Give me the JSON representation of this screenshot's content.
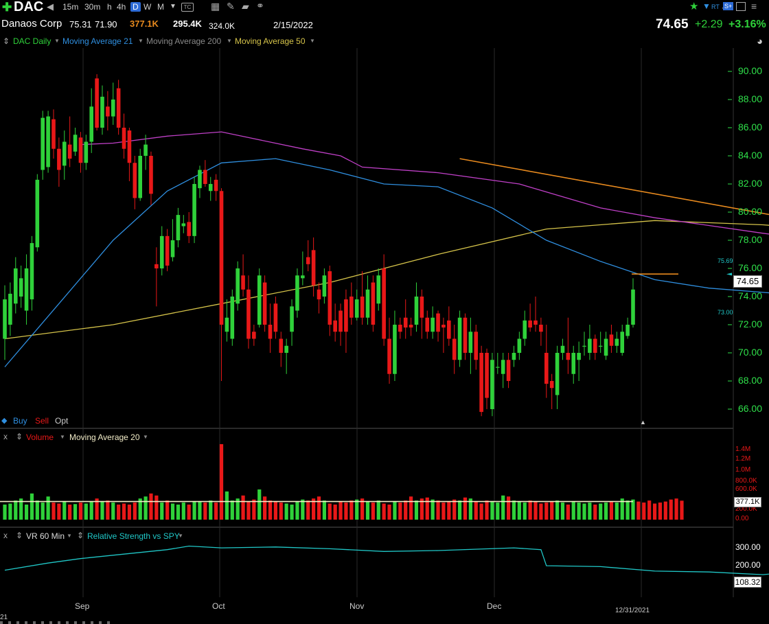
{
  "toolbar": {
    "symbol": "DAC",
    "intervals": [
      "15m",
      "30m",
      "h",
      "4h",
      "D",
      "W",
      "M"
    ],
    "active_interval": "D",
    "rt_label": "RT",
    "s_label": "S+"
  },
  "quote": {
    "name": "Danaos Corp",
    "high": "75.31",
    "low": "71.90",
    "volume": "377.1K",
    "avg_volume": "295.4K",
    "volume2": "324.0K",
    "date": "2/15/2022",
    "last": "74.65",
    "change": "+2.29",
    "change_pct": "+3.16%"
  },
  "legend": {
    "main": "DAC Daily",
    "ma21": "Moving Average 21",
    "ma200": "Moving Average 200",
    "ma50": "Moving Average 50"
  },
  "colors": {
    "up": "#2fd13a",
    "down": "#e81818",
    "ma21": "#2f8fe0",
    "ma50": "#d6c44a",
    "ma200": "#c040c8",
    "trend": "#e88a1e",
    "rs": "#20c8c8",
    "axis": "#2fe04a"
  },
  "price_axis": {
    "ticks": [
      "90.00",
      "88.00",
      "86.00",
      "84.00",
      "82.00",
      "80.00",
      "78.00",
      "76.00",
      "74.00",
      "72.00",
      "70.00",
      "68.00",
      "66.00"
    ],
    "last_box": "74.65",
    "small_top": "75.69",
    "small_bottom": "73.00"
  },
  "trade_bar": {
    "buy": "Buy",
    "sell": "Sell",
    "opt": "Opt"
  },
  "volume_panel": {
    "close": "x",
    "title": "Volume",
    "ma": "Moving Average 20",
    "ticks": [
      "1.4M",
      "1.2M",
      "1.0M",
      "800.0K",
      "600.0K",
      "200.0K",
      "0.00"
    ],
    "box": "377.1K"
  },
  "rs_panel": {
    "close": "x",
    "vr": "VR 60 Min",
    "title": "Relative Strength vs SPY",
    "ticks": [
      "300.00",
      "200.00"
    ],
    "box": "108.32"
  },
  "time_axis": {
    "labels": [
      "Sep",
      "Oct",
      "Nov",
      "Dec"
    ],
    "end_date": "12/31/2021",
    "left_stub": "21"
  },
  "chart_data": {
    "type": "candlestick",
    "symbol": "DAC",
    "ylim": [
      65,
      91
    ],
    "y_ticks": [
      66,
      68,
      70,
      72,
      74,
      76,
      78,
      80,
      82,
      84,
      86,
      88,
      90
    ],
    "x_labels": [
      "Sep",
      "Oct",
      "Nov",
      "Dec"
    ],
    "last_price": 74.65,
    "candles": [
      {
        "o": 71.0,
        "c": 73.8,
        "h": 74.8,
        "l": 69.5
      },
      {
        "o": 72.0,
        "c": 74.2,
        "h": 75.0,
        "l": 71.2
      },
      {
        "o": 73.5,
        "c": 76.0,
        "h": 76.8,
        "l": 72.8
      },
      {
        "o": 74.0,
        "c": 75.3,
        "h": 76.2,
        "l": 73.2
      },
      {
        "o": 73.0,
        "c": 76.0,
        "h": 77.0,
        "l": 72.0
      },
      {
        "o": 73.8,
        "c": 77.8,
        "h": 78.3,
        "l": 73.0
      },
      {
        "o": 77.5,
        "c": 82.3,
        "h": 82.7,
        "l": 77.2
      },
      {
        "o": 83.0,
        "c": 86.7,
        "h": 87.2,
        "l": 82.3
      },
      {
        "o": 83.2,
        "c": 86.8,
        "h": 87.2,
        "l": 82.8
      },
      {
        "o": 86.6,
        "c": 84.5,
        "h": 87.3,
        "l": 83.8
      },
      {
        "o": 84.5,
        "c": 83.0,
        "h": 85.3,
        "l": 81.8
      },
      {
        "o": 83.3,
        "c": 85.0,
        "h": 85.8,
        "l": 82.3
      },
      {
        "o": 84.8,
        "c": 83.8,
        "h": 86.8,
        "l": 83.2
      },
      {
        "o": 84.3,
        "c": 85.5,
        "h": 86.0,
        "l": 84.0
      },
      {
        "o": 85.3,
        "c": 83.5,
        "h": 85.7,
        "l": 82.8
      },
      {
        "o": 83.5,
        "c": 85.0,
        "h": 85.5,
        "l": 83.0
      },
      {
        "o": 85.0,
        "c": 87.5,
        "h": 88.8,
        "l": 84.2
      },
      {
        "o": 89.5,
        "c": 86.0,
        "h": 89.8,
        "l": 85.8
      },
      {
        "o": 86.0,
        "c": 88.2,
        "h": 89.0,
        "l": 85.5
      },
      {
        "o": 87.5,
        "c": 86.8,
        "h": 88.6,
        "l": 85.8
      },
      {
        "o": 86.8,
        "c": 88.0,
        "h": 89.2,
        "l": 86.2
      },
      {
        "o": 88.8,
        "c": 86.0,
        "h": 89.4,
        "l": 85.5
      },
      {
        "o": 86.0,
        "c": 84.5,
        "h": 87.0,
        "l": 83.8
      },
      {
        "o": 85.8,
        "c": 83.5,
        "h": 86.0,
        "l": 82.2
      },
      {
        "o": 83.5,
        "c": 81.0,
        "h": 84.0,
        "l": 80.2
      },
      {
        "o": 81.0,
        "c": 84.0,
        "h": 84.5,
        "l": 80.8
      },
      {
        "o": 84.0,
        "c": 84.8,
        "h": 85.5,
        "l": 83.0
      },
      {
        "o": 84.0,
        "c": 81.3,
        "h": 84.3,
        "l": 80.5
      },
      {
        "o": 76.3,
        "c": 76.0,
        "h": 77.5,
        "l": 73.3
      },
      {
        "o": 76.0,
        "c": 78.3,
        "h": 79.0,
        "l": 75.5
      },
      {
        "o": 78.3,
        "c": 76.2,
        "h": 78.8,
        "l": 75.8
      },
      {
        "o": 76.8,
        "c": 78.0,
        "h": 79.5,
        "l": 76.5
      },
      {
        "o": 78.0,
        "c": 79.8,
        "h": 80.3,
        "l": 77.5
      },
      {
        "o": 79.0,
        "c": 79.2,
        "h": 79.8,
        "l": 78.5
      },
      {
        "o": 79.3,
        "c": 78.3,
        "h": 80.0,
        "l": 77.8
      },
      {
        "o": 78.3,
        "c": 82.0,
        "h": 82.5,
        "l": 77.8
      },
      {
        "o": 81.7,
        "c": 83.0,
        "h": 83.3,
        "l": 81.0
      },
      {
        "o": 83.0,
        "c": 82.0,
        "h": 83.7,
        "l": 81.8
      },
      {
        "o": 81.5,
        "c": 82.0,
        "h": 82.5,
        "l": 80.8
      },
      {
        "o": 82.3,
        "c": 81.5,
        "h": 82.7,
        "l": 80.8
      },
      {
        "o": 81.5,
        "c": 72.0,
        "h": 81.7,
        "l": 68.0
      },
      {
        "o": 71.5,
        "c": 72.5,
        "h": 73.8,
        "l": 70.8
      },
      {
        "o": 71.0,
        "c": 74.0,
        "h": 74.5,
        "l": 70.5
      },
      {
        "o": 73.5,
        "c": 76.0,
        "h": 76.5,
        "l": 73.0
      },
      {
        "o": 75.5,
        "c": 74.5,
        "h": 77.0,
        "l": 74.0
      },
      {
        "o": 74.5,
        "c": 71.0,
        "h": 75.5,
        "l": 70.3
      },
      {
        "o": 71.5,
        "c": 71.0,
        "h": 72.0,
        "l": 70.5
      },
      {
        "o": 72.0,
        "c": 75.5,
        "h": 76.0,
        "l": 71.8
      },
      {
        "o": 75.0,
        "c": 72.0,
        "h": 75.5,
        "l": 71.5
      },
      {
        "o": 72.0,
        "c": 71.0,
        "h": 73.5,
        "l": 70.0
      },
      {
        "o": 73.5,
        "c": 71.5,
        "h": 74.0,
        "l": 71.0
      },
      {
        "o": 71.0,
        "c": 70.0,
        "h": 71.5,
        "l": 69.0
      },
      {
        "o": 70.0,
        "c": 70.5,
        "h": 71.0,
        "l": 68.5
      },
      {
        "o": 71.5,
        "c": 73.3,
        "h": 73.8,
        "l": 70.5
      },
      {
        "o": 73.0,
        "c": 75.5,
        "h": 76.0,
        "l": 72.5
      },
      {
        "o": 75.3,
        "c": 75.5,
        "h": 77.2,
        "l": 74.8
      },
      {
        "o": 76.8,
        "c": 76.3,
        "h": 78.0,
        "l": 75.8
      },
      {
        "o": 77.3,
        "c": 74.8,
        "h": 78.2,
        "l": 74.0
      },
      {
        "o": 74.5,
        "c": 73.8,
        "h": 75.0,
        "l": 72.8
      },
      {
        "o": 74.0,
        "c": 75.5,
        "h": 76.0,
        "l": 73.5
      },
      {
        "o": 75.8,
        "c": 72.0,
        "h": 76.2,
        "l": 71.2
      },
      {
        "o": 72.3,
        "c": 71.5,
        "h": 73.5,
        "l": 70.8
      },
      {
        "o": 73.0,
        "c": 71.5,
        "h": 73.5,
        "l": 70.5
      },
      {
        "o": 73.8,
        "c": 71.5,
        "h": 74.5,
        "l": 70.0
      },
      {
        "o": 74.0,
        "c": 72.5,
        "h": 75.0,
        "l": 72.0
      },
      {
        "o": 72.5,
        "c": 73.8,
        "h": 74.5,
        "l": 72.3
      },
      {
        "o": 74.0,
        "c": 72.5,
        "h": 75.8,
        "l": 72.0
      },
      {
        "o": 72.5,
        "c": 74.5,
        "h": 75.5,
        "l": 72.0
      },
      {
        "o": 75.0,
        "c": 72.0,
        "h": 75.5,
        "l": 71.5
      },
      {
        "o": 73.5,
        "c": 75.5,
        "h": 76.0,
        "l": 73.0
      },
      {
        "o": 76.0,
        "c": 71.0,
        "h": 77.0,
        "l": 70.5
      },
      {
        "o": 71.0,
        "c": 68.5,
        "h": 72.5,
        "l": 67.8
      },
      {
        "o": 68.5,
        "c": 72.0,
        "h": 73.0,
        "l": 68.0
      },
      {
        "o": 72.0,
        "c": 71.5,
        "h": 72.5,
        "l": 71.0
      },
      {
        "o": 72.5,
        "c": 71.8,
        "h": 73.8,
        "l": 71.0
      },
      {
        "o": 72.0,
        "c": 71.8,
        "h": 72.5,
        "l": 71.2
      },
      {
        "o": 72.0,
        "c": 74.0,
        "h": 75.0,
        "l": 71.5
      },
      {
        "o": 74.0,
        "c": 72.5,
        "h": 74.5,
        "l": 71.0
      },
      {
        "o": 72.5,
        "c": 71.5,
        "h": 73.0,
        "l": 71.0
      },
      {
        "o": 71.5,
        "c": 72.5,
        "h": 73.3,
        "l": 71.0
      },
      {
        "o": 72.8,
        "c": 71.5,
        "h": 73.0,
        "l": 70.8
      },
      {
        "o": 72.0,
        "c": 71.8,
        "h": 72.5,
        "l": 70.0
      },
      {
        "o": 72.3,
        "c": 71.0,
        "h": 73.3,
        "l": 70.5
      },
      {
        "o": 71.0,
        "c": 69.5,
        "h": 72.0,
        "l": 68.5
      },
      {
        "o": 69.5,
        "c": 72.5,
        "h": 73.0,
        "l": 69.0
      },
      {
        "o": 72.5,
        "c": 70.0,
        "h": 72.8,
        "l": 69.5
      },
      {
        "o": 70.0,
        "c": 71.5,
        "h": 72.5,
        "l": 68.5
      },
      {
        "o": 71.5,
        "c": 69.5,
        "h": 72.0,
        "l": 68.8
      },
      {
        "o": 70.0,
        "c": 65.8,
        "h": 70.5,
        "l": 65.5
      },
      {
        "o": 70.0,
        "c": 66.8,
        "h": 70.3,
        "l": 66.0
      },
      {
        "o": 66.0,
        "c": 69.5,
        "h": 70.0,
        "l": 65.5
      },
      {
        "o": 69.0,
        "c": 69.0,
        "h": 70.0,
        "l": 68.5
      },
      {
        "o": 68.5,
        "c": 69.5,
        "h": 70.0,
        "l": 67.5
      },
      {
        "o": 69.5,
        "c": 68.0,
        "h": 70.0,
        "l": 67.5
      },
      {
        "o": 69.5,
        "c": 70.0,
        "h": 70.5,
        "l": 69.0
      },
      {
        "o": 70.0,
        "c": 71.0,
        "h": 71.5,
        "l": 69.5
      },
      {
        "o": 71.0,
        "c": 72.3,
        "h": 73.0,
        "l": 70.5
      },
      {
        "o": 72.3,
        "c": 71.8,
        "h": 73.5,
        "l": 71.5
      },
      {
        "o": 72.3,
        "c": 72.0,
        "h": 74.0,
        "l": 71.5
      },
      {
        "o": 72.0,
        "c": 71.5,
        "h": 72.5,
        "l": 70.5
      },
      {
        "o": 70.0,
        "c": 67.8,
        "h": 72.0,
        "l": 66.8
      },
      {
        "o": 68.0,
        "c": 67.5,
        "h": 68.5,
        "l": 66.0
      },
      {
        "o": 67.0,
        "c": 70.0,
        "h": 70.5,
        "l": 66.0
      },
      {
        "o": 70.0,
        "c": 70.5,
        "h": 71.0,
        "l": 69.5
      },
      {
        "o": 70.0,
        "c": 69.5,
        "h": 72.5,
        "l": 68.5
      },
      {
        "o": 68.5,
        "c": 70.0,
        "h": 70.5,
        "l": 67.8
      },
      {
        "o": 69.5,
        "c": 70.0,
        "h": 70.8,
        "l": 68.0
      },
      {
        "o": 70.5,
        "c": 70.5,
        "h": 71.5,
        "l": 69.8
      },
      {
        "o": 70.0,
        "c": 71.0,
        "h": 72.0,
        "l": 69.5
      },
      {
        "o": 71.0,
        "c": 70.0,
        "h": 71.3,
        "l": 69.5
      },
      {
        "o": 70.5,
        "c": 70.5,
        "h": 71.5,
        "l": 70.0
      },
      {
        "o": 69.8,
        "c": 71.0,
        "h": 71.5,
        "l": 69.5
      },
      {
        "o": 71.3,
        "c": 70.5,
        "h": 72.0,
        "l": 70.0
      },
      {
        "o": 70.5,
        "c": 71.0,
        "h": 71.5,
        "l": 70.0
      },
      {
        "o": 70.0,
        "c": 71.5,
        "h": 72.0,
        "l": 69.8
      },
      {
        "o": 71.2,
        "c": 72.0,
        "h": 72.5,
        "l": 71.0
      },
      {
        "o": 72.0,
        "c": 74.5,
        "h": 75.3,
        "l": 71.8
      }
    ],
    "ma21": [
      [
        0,
        69.0
      ],
      [
        10,
        73.5
      ],
      [
        20,
        78.0
      ],
      [
        30,
        81.5
      ],
      [
        40,
        83.5
      ],
      [
        50,
        83.8
      ],
      [
        60,
        83.0
      ],
      [
        70,
        82.0
      ],
      [
        80,
        81.8
      ],
      [
        90,
        80.3
      ],
      [
        100,
        78.0
      ],
      [
        110,
        76.5
      ],
      [
        120,
        75.2
      ],
      [
        130,
        74.6
      ],
      [
        140,
        74.3
      ],
      [
        150,
        74.0
      ],
      [
        160,
        73.6
      ],
      [
        170,
        73.2
      ],
      [
        180,
        73.0
      ],
      [
        190,
        72.8
      ],
      [
        200,
        72.0
      ],
      [
        210,
        71.2
      ],
      [
        220,
        70.5
      ],
      [
        230,
        70.0
      ],
      [
        240,
        69.8
      ],
      [
        250,
        69.6
      ],
      [
        260,
        69.6
      ],
      [
        270,
        69.9
      ]
    ],
    "ma50": [
      [
        0,
        71.0
      ],
      [
        20,
        72.0
      ],
      [
        40,
        73.5
      ],
      [
        60,
        75.0
      ],
      [
        80,
        77.0
      ],
      [
        100,
        78.8
      ],
      [
        120,
        79.4
      ],
      [
        140,
        79.1
      ],
      [
        160,
        78.5
      ],
      [
        180,
        77.5
      ],
      [
        200,
        76.0
      ],
      [
        220,
        74.5
      ],
      [
        240,
        73.2
      ],
      [
        260,
        72.2
      ],
      [
        270,
        71.9
      ]
    ],
    "ma200": [
      [
        14,
        84.8
      ],
      [
        20,
        84.9
      ],
      [
        30,
        85.4
      ],
      [
        40,
        85.7
      ],
      [
        45,
        85.3
      ],
      [
        55,
        84.5
      ],
      [
        62,
        84.0
      ],
      [
        66,
        83.2
      ],
      [
        80,
        82.8
      ],
      [
        95,
        82.0
      ],
      [
        110,
        80.3
      ],
      [
        120,
        79.6
      ],
      [
        140,
        78.5
      ],
      [
        160,
        77.5
      ],
      [
        180,
        76.5
      ],
      [
        200,
        76.0
      ],
      [
        220,
        75.8
      ],
      [
        240,
        75.6
      ],
      [
        270,
        75.6
      ]
    ],
    "resistance_line": {
      "points": [
        [
          84,
          83.8
        ],
        [
          294,
          69.2
        ]
      ]
    },
    "support_line": {
      "points": [
        [
          182,
          64.5
        ],
        [
          270,
          69.2
        ]
      ]
    },
    "horizontal_level": 75.6,
    "volume_k": [
      300,
      320,
      380,
      420,
      300,
      520,
      380,
      340,
      460,
      340,
      320,
      360,
      300,
      310,
      340,
      320,
      360,
      420,
      360,
      380,
      340,
      300,
      320,
      300,
      340,
      420,
      460,
      520,
      480,
      340,
      380,
      320,
      300,
      340,
      300,
      360,
      360,
      340,
      380,
      340,
      1500,
      560,
      380,
      420,
      480,
      360,
      400,
      600,
      460,
      380,
      360,
      340,
      320,
      300,
      360,
      400,
      380,
      420,
      460,
      380,
      320,
      300,
      360,
      340,
      380,
      400,
      420,
      360,
      340,
      380,
      320,
      300,
      360,
      340,
      380,
      460,
      380,
      420,
      440,
      400,
      380,
      340,
      360,
      400,
      380,
      440,
      420,
      360,
      320,
      380,
      360,
      340,
      480,
      460,
      380,
      360,
      340,
      380,
      360,
      320,
      340,
      360,
      380,
      340,
      300,
      360,
      340,
      320,
      340,
      300,
      320,
      340,
      360,
      340,
      420,
      380,
      400,
      360,
      340,
      380,
      320,
      340,
      360,
      400,
      420,
      377
    ],
    "volume_ma20_k": 360,
    "rs": [
      [
        0,
        175
      ],
      [
        8,
        215
      ],
      [
        14,
        240
      ],
      [
        30,
        290
      ],
      [
        34,
        310
      ],
      [
        40,
        300
      ],
      [
        50,
        305
      ],
      [
        60,
        295
      ],
      [
        70,
        280
      ],
      [
        80,
        285
      ],
      [
        94,
        300
      ],
      [
        99,
        290
      ],
      [
        100,
        200
      ],
      [
        110,
        195
      ],
      [
        120,
        170
      ],
      [
        130,
        165
      ],
      [
        140,
        150
      ],
      [
        150,
        180
      ],
      [
        160,
        140
      ],
      [
        170,
        130
      ],
      [
        180,
        115
      ],
      [
        190,
        110
      ],
      [
        200,
        105
      ],
      [
        210,
        110
      ],
      [
        220,
        102
      ],
      [
        230,
        100
      ],
      [
        240,
        108
      ],
      [
        250,
        110
      ],
      [
        260,
        100
      ],
      [
        270,
        108
      ]
    ],
    "rs_ticks": [
      300,
      200
    ],
    "rs_last": 108.32
  }
}
